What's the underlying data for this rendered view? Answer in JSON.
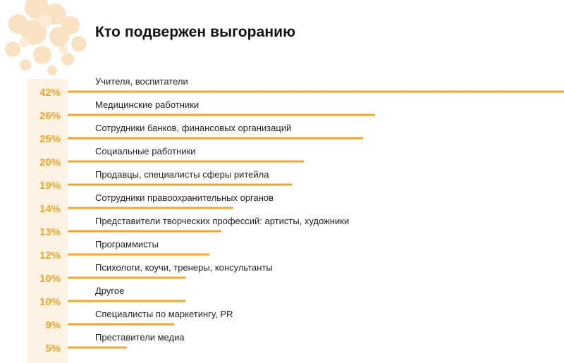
{
  "page": {
    "title": "Кто подвержен выгоранию"
  },
  "colors": {
    "accent": "#f4a62a",
    "strip": "#fdf3e4",
    "decor": "#f9e2c2"
  },
  "chart_data": {
    "type": "bar",
    "orientation": "horizontal",
    "title": "Кто подвержен выгоранию",
    "unit": "%",
    "xlim": [
      0,
      42
    ],
    "grid": false,
    "legend": "none",
    "categories": [
      "Учителя, воспитатели",
      "Медицинские работники",
      "Сотрудники банков, финансовых организаций",
      "Социальные работники",
      "Продавцы, специалисты сферы ритейла",
      "Сотрудники правоохранительных органов",
      "Представители творческих профессий: артисты, художники",
      "Программисты",
      "Психологи, коучи, тренеры, консультанты",
      "Другое",
      "Специалисты по маркетингу, PR",
      "Преставители медиа"
    ],
    "values": [
      42,
      26,
      25,
      20,
      19,
      14,
      13,
      12,
      10,
      10,
      9,
      5
    ],
    "value_labels": [
      "42%",
      "26%",
      "25%",
      "20%",
      "19%",
      "14%",
      "13%",
      "12%",
      "10%",
      "10%",
      "9%",
      "5%"
    ]
  }
}
